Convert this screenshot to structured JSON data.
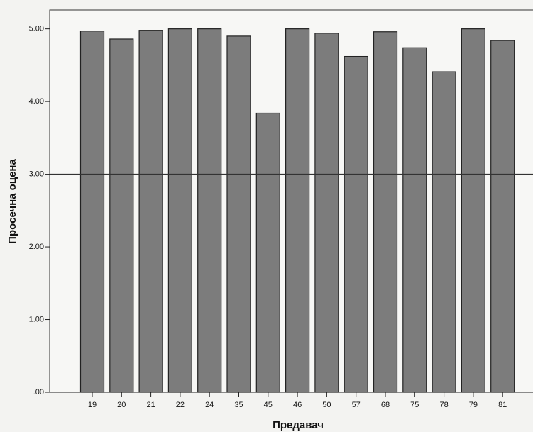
{
  "chart_data": {
    "type": "bar",
    "x_label": "Предавач",
    "y_label": "Просечна оцена",
    "categories": [
      "19",
      "20",
      "21",
      "22",
      "24",
      "35",
      "45",
      "46",
      "50",
      "57",
      "68",
      "75",
      "78",
      "79",
      "81"
    ],
    "values": [
      4.97,
      4.86,
      4.98,
      5.0,
      5.0,
      4.9,
      3.84,
      5.0,
      4.94,
      4.62,
      4.96,
      4.74,
      4.41,
      5.0,
      4.84
    ],
    "color": "#7c7c7c",
    "ylim": [
      0,
      5.26
    ],
    "yticks": [
      {
        "value": 0,
        "label": ".00"
      },
      {
        "value": 1,
        "label": "1.00"
      },
      {
        "value": 2,
        "label": "2.00"
      },
      {
        "value": 3,
        "label": "3.00"
      },
      {
        "value": 4,
        "label": "4.00"
      },
      {
        "value": 5,
        "label": "5.00"
      }
    ],
    "ref_line": 3
  }
}
